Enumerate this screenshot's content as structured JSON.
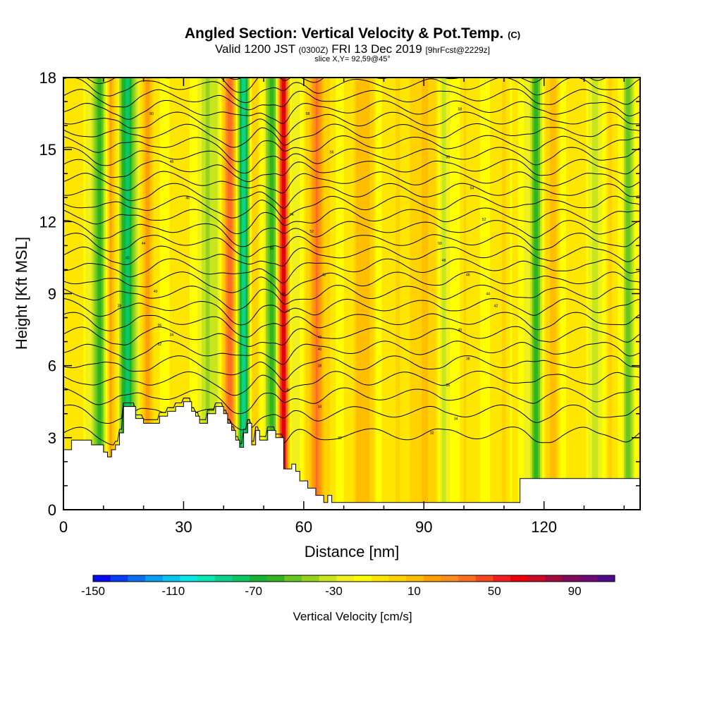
{
  "title": {
    "main": "Angled Section: Vertical Velocity & Pot.Temp.",
    "unit": "(C)"
  },
  "subtitle": {
    "valid": "Valid 1200 JST",
    "utc": "(0300Z)",
    "date": "FRI 13 Dec 2019",
    "fcst": "[9hrFcst@2229z]"
  },
  "slice_label": "slice X,Y= 92,59@45°",
  "chart_data": {
    "type": "heatmap",
    "title": "Angled Section: Vertical Velocity & Pot.Temp. (C)",
    "xlabel": "Distance [nm]",
    "ylabel": "Height [Kft MSL]",
    "xlim": [
      0,
      144
    ],
    "ylim": [
      0,
      18
    ],
    "x_ticks": [
      "0",
      "30",
      "60",
      "90",
      "120"
    ],
    "y_ticks": [
      "0",
      "3",
      "6",
      "9",
      "12",
      "15",
      "18"
    ],
    "terrain": {
      "x": [
        0,
        2,
        2,
        7,
        7,
        10,
        10,
        11,
        11,
        12,
        12,
        13,
        13,
        14,
        14,
        15,
        15,
        18,
        18,
        20,
        20,
        24,
        24,
        26,
        26,
        28,
        28,
        30,
        30,
        32,
        32,
        33,
        33,
        34,
        34,
        36,
        36,
        38,
        38,
        40,
        40,
        41,
        41,
        42,
        42,
        43,
        43,
        44,
        44,
        45,
        45,
        46,
        46,
        47,
        47,
        48,
        48,
        49,
        49,
        51,
        51,
        53,
        53,
        55,
        55,
        57,
        57,
        58,
        58,
        59,
        59,
        61,
        61,
        63,
        63,
        65,
        65,
        66,
        66,
        67,
        67,
        69,
        69,
        91,
        91,
        114,
        114,
        138,
        138,
        144
      ],
      "y": [
        2.5,
        2.5,
        2.9,
        2.9,
        2.7,
        2.7,
        2.4,
        2.4,
        2.2,
        2.2,
        2.5,
        2.5,
        2.7,
        2.7,
        3.2,
        3.2,
        4.3,
        4.3,
        3.8,
        3.8,
        3.6,
        3.6,
        3.9,
        3.9,
        4.1,
        4.1,
        4.3,
        4.3,
        4.5,
        4.5,
        4.1,
        4.1,
        3.9,
        3.9,
        3.6,
        3.6,
        4.0,
        4.0,
        4.3,
        4.3,
        4.0,
        4.0,
        3.6,
        3.6,
        3.3,
        3.3,
        2.9,
        2.9,
        2.6,
        2.6,
        3.2,
        3.2,
        3.6,
        3.6,
        2.7,
        2.7,
        3.3,
        3.3,
        2.9,
        2.9,
        3.3,
        3.3,
        3.0,
        3.0,
        1.7,
        1.7,
        1.9,
        1.9,
        1.6,
        1.6,
        1.2,
        1.2,
        0.9,
        0.9,
        0.6,
        0.6,
        0.3,
        0.3,
        0.6,
        0.6,
        0.3,
        0.3,
        0.3,
        0.3,
        0.3,
        0.3,
        1.3,
        1.3,
        1.3,
        1.3
      ]
    },
    "velocity_features": [
      {
        "x": 9,
        "w": 2.0,
        "amp": -55
      },
      {
        "x": 12,
        "w": 1.3,
        "amp": 35
      },
      {
        "x": 16,
        "w": 2.2,
        "amp": -70
      },
      {
        "x": 21,
        "w": 1.5,
        "amp": 25
      },
      {
        "x": 37,
        "w": 3.0,
        "amp": -35
      },
      {
        "x": 42,
        "w": 2.0,
        "amp": 75
      },
      {
        "x": 45,
        "w": 2.2,
        "amp": -100
      },
      {
        "x": 47,
        "w": 1.5,
        "amp": 40
      },
      {
        "x": 52,
        "w": 1.8,
        "amp": -50
      },
      {
        "x": 55,
        "w": 1.3,
        "amp": 100
      },
      {
        "x": 57,
        "w": 1.8,
        "amp": -30
      },
      {
        "x": 63,
        "w": 2.0,
        "amp": 45
      },
      {
        "x": 75,
        "w": 2.5,
        "amp": 22
      },
      {
        "x": 89,
        "w": 3.0,
        "amp": 18
      },
      {
        "x": 95,
        "w": 1.5,
        "amp": -20
      },
      {
        "x": 118,
        "w": 1.8,
        "amp": -55
      },
      {
        "x": 122,
        "w": 1.5,
        "amp": 30
      },
      {
        "x": 133,
        "w": 1.5,
        "amp": -25
      },
      {
        "x": 141,
        "w": 1.5,
        "amp": -40
      }
    ],
    "theta_levels": [
      4,
      6,
      8,
      10,
      12,
      14,
      16,
      18,
      20,
      22,
      24,
      26,
      28,
      30,
      32,
      34,
      36,
      38,
      40,
      42,
      44,
      46,
      48,
      50,
      52,
      54,
      56,
      58,
      60
    ],
    "contour_labels": [
      {
        "x": 22,
        "y": 16.5,
        "text": "50"
      },
      {
        "x": 27,
        "y": 14.5,
        "text": "48"
      },
      {
        "x": 31,
        "y": 13.0,
        "text": "46"
      },
      {
        "x": 20,
        "y": 11.1,
        "text": "44"
      },
      {
        "x": 16,
        "y": 10.5,
        "text": "42"
      },
      {
        "x": 23,
        "y": 9.1,
        "text": "40"
      },
      {
        "x": 14,
        "y": 8.5,
        "text": "38"
      },
      {
        "x": 24,
        "y": 7.7,
        "text": "36"
      },
      {
        "x": 27,
        "y": 7.3,
        "text": "34"
      },
      {
        "x": 24,
        "y": 6.9,
        "text": "32"
      },
      {
        "x": 61,
        "y": 16.5,
        "text": "58"
      },
      {
        "x": 67,
        "y": 14.9,
        "text": "56"
      },
      {
        "x": 57,
        "y": 12.3,
        "text": "54"
      },
      {
        "x": 62,
        "y": 11.6,
        "text": "52"
      },
      {
        "x": 52,
        "y": 10.9,
        "text": "50"
      },
      {
        "x": 65,
        "y": 9.8,
        "text": "48"
      },
      {
        "x": 55,
        "y": 9.0,
        "text": "46"
      },
      {
        "x": 56,
        "y": 8.3,
        "text": "44"
      },
      {
        "x": 64,
        "y": 7.2,
        "text": "42"
      },
      {
        "x": 64,
        "y": 6.7,
        "text": "40"
      },
      {
        "x": 64,
        "y": 6.0,
        "text": "38"
      },
      {
        "x": 56,
        "y": 5.0,
        "text": "36"
      },
      {
        "x": 64,
        "y": 4.3,
        "text": "34"
      },
      {
        "x": 69,
        "y": 3.0,
        "text": "32"
      },
      {
        "x": 99,
        "y": 16.7,
        "text": "58"
      },
      {
        "x": 96,
        "y": 14.7,
        "text": "56"
      },
      {
        "x": 102,
        "y": 13.4,
        "text": "54"
      },
      {
        "x": 105,
        "y": 12.1,
        "text": "52"
      },
      {
        "x": 94,
        "y": 11.1,
        "text": "50"
      },
      {
        "x": 95,
        "y": 10.4,
        "text": "48"
      },
      {
        "x": 101,
        "y": 9.8,
        "text": "46"
      },
      {
        "x": 106,
        "y": 9.0,
        "text": "44"
      },
      {
        "x": 108,
        "y": 8.5,
        "text": "42"
      },
      {
        "x": 99,
        "y": 7.5,
        "text": "40"
      },
      {
        "x": 101,
        "y": 6.3,
        "text": "38"
      },
      {
        "x": 96,
        "y": 5.2,
        "text": "36"
      },
      {
        "x": 98,
        "y": 3.8,
        "text": "34"
      },
      {
        "x": 92,
        "y": 3.2,
        "text": "32"
      }
    ],
    "colorbar": {
      "label": "Vertical Velocity [cm/s]",
      "min": -150,
      "max": 110,
      "step": 10,
      "tick_labels": [
        "-150",
        "-110",
        "-70",
        "-30",
        "10",
        "50",
        "90"
      ],
      "colors": [
        "#0a0af0",
        "#0a3cf4",
        "#0a6ef0",
        "#0a9cf0",
        "#0ac4f0",
        "#0ae6e6",
        "#0ae6b4",
        "#0ad28c",
        "#0ac864",
        "#14b432",
        "#32b41e",
        "#64c81e",
        "#96d21e",
        "#c8e61e",
        "#f0f01e",
        "#ffff00",
        "#ffe600",
        "#ffd200",
        "#ffbe00",
        "#ffa000",
        "#ff8c1e",
        "#ff6e1e",
        "#f5461e",
        "#f01e1e",
        "#e6000a",
        "#c80a28",
        "#a00a3c",
        "#820a5a",
        "#6e0a78",
        "#500a8c"
      ]
    }
  }
}
